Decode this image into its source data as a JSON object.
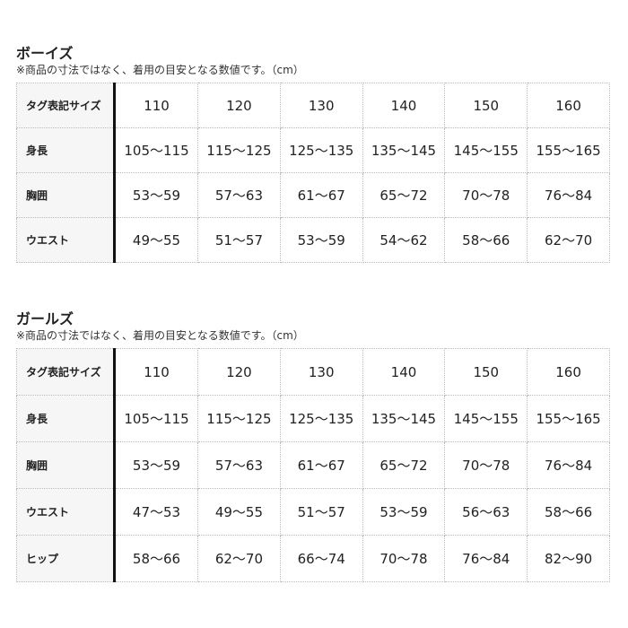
{
  "boys": {
    "title": "ボーイズ",
    "note": "※商品の寸法ではなく、着用の目安となる数値です。（cm）",
    "rows": [
      {
        "label": "タグ表記サイズ",
        "values": [
          "110",
          "120",
          "130",
          "140",
          "150",
          "160"
        ]
      },
      {
        "label": "身長",
        "values": [
          "105～115",
          "115～125",
          "125～135",
          "135～145",
          "145～155",
          "155～165"
        ]
      },
      {
        "label": "胸囲",
        "values": [
          "53～59",
          "57～63",
          "61～67",
          "65～72",
          "70～78",
          "76～84"
        ]
      },
      {
        "label": "ウエスト",
        "values": [
          "49～55",
          "51～57",
          "53～59",
          "54～62",
          "58～66",
          "62～70"
        ]
      }
    ]
  },
  "girls": {
    "title": "ガールズ",
    "note": "※商品の寸法ではなく、着用の目安となる数値です。（cm）",
    "rows": [
      {
        "label": "タグ表記サイズ",
        "values": [
          "110",
          "120",
          "130",
          "140",
          "150",
          "160"
        ]
      },
      {
        "label": "身長",
        "values": [
          "105～115",
          "115～125",
          "125～135",
          "135～145",
          "145～155",
          "155～165"
        ]
      },
      {
        "label": "胸囲",
        "values": [
          "53～59",
          "57～63",
          "61～67",
          "65～72",
          "70～78",
          "76～84"
        ]
      },
      {
        "label": "ウエスト",
        "values": [
          "47～53",
          "49～55",
          "51～57",
          "53～59",
          "56～63",
          "58～66"
        ]
      },
      {
        "label": "ヒップ",
        "values": [
          "58～66",
          "62～70",
          "66～74",
          "70～78",
          "76～84",
          "82～90"
        ]
      }
    ]
  }
}
